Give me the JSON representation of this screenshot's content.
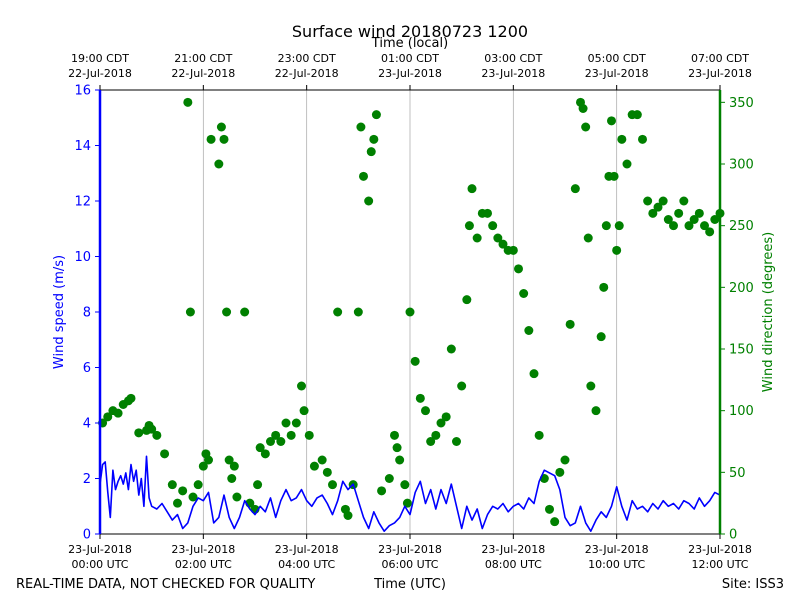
{
  "chart_data": {
    "type": "line",
    "title": "Surface wind 20180723 1200",
    "top_axis_label": "Time (local)",
    "xlabel": "Time (UTC)",
    "ylabel_left": "Wind speed (m/s)",
    "ylabel_right": "Wind direction (degrees)",
    "xlim_utc_hours": [
      0,
      12
    ],
    "ylim_left": [
      0,
      16
    ],
    "ylim_right": [
      0,
      360
    ],
    "grid": "vertical",
    "bottom_ticks": [
      {
        "h": 0,
        "line1": "23-Jul-2018",
        "line2": "00:00 UTC"
      },
      {
        "h": 2,
        "line1": "23-Jul-2018",
        "line2": "02:00 UTC"
      },
      {
        "h": 4,
        "line1": "23-Jul-2018",
        "line2": "04:00 UTC"
      },
      {
        "h": 6,
        "line1": "23-Jul-2018",
        "line2": "06:00 UTC"
      },
      {
        "h": 8,
        "line1": "23-Jul-2018",
        "line2": "08:00 UTC"
      },
      {
        "h": 10,
        "line1": "23-Jul-2018",
        "line2": "10:00 UTC"
      },
      {
        "h": 12,
        "line1": "23-Jul-2018",
        "line2": "12:00 UTC"
      }
    ],
    "top_ticks": [
      {
        "h": 0,
        "line1": "19:00 CDT",
        "line2": "22-Jul-2018"
      },
      {
        "h": 2,
        "line1": "21:00 CDT",
        "line2": "22-Jul-2018"
      },
      {
        "h": 4,
        "line1": "23:00 CDT",
        "line2": "22-Jul-2018"
      },
      {
        "h": 6,
        "line1": "01:00 CDT",
        "line2": "23-Jul-2018"
      },
      {
        "h": 8,
        "line1": "03:00 CDT",
        "line2": "23-Jul-2018"
      },
      {
        "h": 10,
        "line1": "05:00 CDT",
        "line2": "23-Jul-2018"
      },
      {
        "h": 12,
        "line1": "07:00 CDT",
        "line2": "23-Jul-2018"
      }
    ],
    "left_ticks": [
      0,
      2,
      4,
      6,
      8,
      10,
      12,
      14,
      16
    ],
    "right_ticks": [
      0,
      50,
      100,
      150,
      200,
      250,
      300,
      350
    ],
    "series": [
      {
        "name": "Wind speed (m/s)",
        "axis": "left",
        "style": "line",
        "color": "#0000ff",
        "x": [
          0,
          0.05,
          0.1,
          0.15,
          0.2,
          0.25,
          0.3,
          0.35,
          0.4,
          0.45,
          0.5,
          0.55,
          0.6,
          0.65,
          0.7,
          0.75,
          0.8,
          0.85,
          0.9,
          0.95,
          1.0,
          1.1,
          1.2,
          1.3,
          1.4,
          1.5,
          1.6,
          1.7,
          1.8,
          1.9,
          2.0,
          2.1,
          2.2,
          2.3,
          2.4,
          2.5,
          2.6,
          2.7,
          2.8,
          2.9,
          3.0,
          3.1,
          3.2,
          3.3,
          3.4,
          3.5,
          3.6,
          3.7,
          3.8,
          3.9,
          4.0,
          4.1,
          4.2,
          4.3,
          4.4,
          4.5,
          4.6,
          4.7,
          4.8,
          4.9,
          5.0,
          5.1,
          5.2,
          5.3,
          5.4,
          5.5,
          5.6,
          5.7,
          5.8,
          5.9,
          6.0,
          6.1,
          6.2,
          6.3,
          6.4,
          6.5,
          6.6,
          6.7,
          6.8,
          6.9,
          7.0,
          7.1,
          7.2,
          7.3,
          7.4,
          7.5,
          7.6,
          7.7,
          7.8,
          7.9,
          8.0,
          8.1,
          8.2,
          8.3,
          8.4,
          8.5,
          8.6,
          8.7,
          8.8,
          8.9,
          9.0,
          9.1,
          9.2,
          9.3,
          9.4,
          9.5,
          9.6,
          9.7,
          9.8,
          9.9,
          10.0,
          10.1,
          10.2,
          10.3,
          10.4,
          10.5,
          10.6,
          10.7,
          10.8,
          10.9,
          11.0,
          11.1,
          11.2,
          11.3,
          11.4,
          11.5,
          11.6,
          11.7,
          11.8,
          11.9,
          12.0
        ],
        "values": [
          1.8,
          2.5,
          2.6,
          1.5,
          0.6,
          2.3,
          1.6,
          1.9,
          2.1,
          1.8,
          2.2,
          1.6,
          2.5,
          1.9,
          2.3,
          1.4,
          2.0,
          1.0,
          2.8,
          1.3,
          1.0,
          0.9,
          1.1,
          0.8,
          0.5,
          0.7,
          0.2,
          0.4,
          1.0,
          1.3,
          1.2,
          1.5,
          0.4,
          0.6,
          1.4,
          0.6,
          0.2,
          0.6,
          1.2,
          0.9,
          0.7,
          1.0,
          0.8,
          1.3,
          0.6,
          1.2,
          1.6,
          1.2,
          1.3,
          1.6,
          1.2,
          1.0,
          1.3,
          1.4,
          1.1,
          0.7,
          1.2,
          1.9,
          1.6,
          1.8,
          1.2,
          0.6,
          0.2,
          0.8,
          0.4,
          0.1,
          0.3,
          0.4,
          0.6,
          1.0,
          0.7,
          1.5,
          1.9,
          1.1,
          1.6,
          0.9,
          1.6,
          1.1,
          1.8,
          1.0,
          0.2,
          1.0,
          0.5,
          0.9,
          0.2,
          0.7,
          1.0,
          0.9,
          1.1,
          0.8,
          1.0,
          1.1,
          0.9,
          1.3,
          1.1,
          1.9,
          2.3,
          2.2,
          2.1,
          1.6,
          0.6,
          0.3,
          0.4,
          1.0,
          0.4,
          0.1,
          0.5,
          0.8,
          0.6,
          1.0,
          1.7,
          1.0,
          0.5,
          1.2,
          0.9,
          1.0,
          0.8,
          1.1,
          0.9,
          1.2,
          1.0,
          1.1,
          0.9,
          1.2,
          1.1,
          0.9,
          1.3,
          1.0,
          1.2,
          1.5,
          1.4
        ]
      },
      {
        "name": "Wind direction (degrees)",
        "axis": "right",
        "style": "scatter",
        "color": "#008000",
        "x": [
          0.05,
          0.15,
          0.25,
          0.35,
          0.45,
          0.55,
          0.6,
          0.75,
          0.9,
          0.95,
          1.0,
          1.1,
          1.25,
          1.4,
          1.5,
          1.6,
          1.7,
          1.75,
          1.8,
          1.9,
          2.0,
          2.05,
          2.1,
          2.15,
          2.3,
          2.35,
          2.4,
          2.45,
          2.5,
          2.55,
          2.6,
          2.65,
          2.8,
          2.9,
          3.0,
          3.05,
          3.1,
          3.2,
          3.3,
          3.4,
          3.5,
          3.6,
          3.7,
          3.8,
          3.9,
          3.95,
          4.05,
          4.15,
          4.3,
          4.4,
          4.5,
          4.6,
          4.75,
          4.8,
          4.9,
          5.0,
          5.05,
          5.1,
          5.2,
          5.25,
          5.3,
          5.35,
          5.45,
          5.6,
          5.7,
          5.75,
          5.8,
          5.9,
          5.95,
          6.0,
          6.1,
          6.2,
          6.3,
          6.4,
          6.5,
          6.6,
          6.7,
          6.8,
          6.9,
          7.0,
          7.1,
          7.15,
          7.2,
          7.3,
          7.4,
          7.5,
          7.6,
          7.7,
          7.8,
          7.9,
          8.0,
          8.1,
          8.2,
          8.3,
          8.4,
          8.5,
          8.6,
          8.7,
          8.8,
          8.9,
          9.0,
          9.1,
          9.2,
          9.3,
          9.35,
          9.4,
          9.45,
          9.5,
          9.6,
          9.7,
          9.75,
          9.8,
          9.85,
          9.9,
          9.95,
          10.0,
          10.05,
          10.1,
          10.2,
          10.3,
          10.4,
          10.5,
          10.6,
          10.7,
          10.8,
          10.9,
          11.0,
          11.1,
          11.2,
          11.3,
          11.4,
          11.5,
          11.6,
          11.7,
          11.8,
          11.9,
          12.0
        ],
        "values": [
          90,
          95,
          100,
          98,
          105,
          108,
          110,
          82,
          84,
          88,
          85,
          80,
          65,
          40,
          25,
          35,
          350,
          180,
          30,
          40,
          55,
          65,
          60,
          320,
          300,
          330,
          320,
          180,
          60,
          45,
          55,
          30,
          180,
          25,
          20,
          40,
          70,
          65,
          75,
          80,
          75,
          90,
          80,
          90,
          120,
          100,
          80,
          55,
          60,
          50,
          40,
          180,
          20,
          15,
          40,
          180,
          330,
          290,
          270,
          310,
          320,
          340,
          35,
          45,
          80,
          70,
          60,
          40,
          25,
          180,
          140,
          110,
          100,
          75,
          80,
          90,
          95,
          150,
          75,
          120,
          190,
          250,
          280,
          240,
          260,
          260,
          250,
          240,
          235,
          230,
          230,
          215,
          195,
          165,
          130,
          80,
          45,
          20,
          10,
          50,
          60,
          170,
          280,
          350,
          345,
          330,
          240,
          120,
          100,
          160,
          200,
          250,
          290,
          335,
          290,
          230,
          250,
          320,
          300,
          340,
          340,
          320,
          270,
          260,
          265,
          270,
          255,
          250,
          260,
          270,
          250,
          255,
          260,
          250,
          245,
          255,
          260
        ]
      }
    ]
  },
  "footer": {
    "left": "REAL-TIME DATA, NOT CHECKED FOR QUALITY",
    "right": "Site: ISS3"
  },
  "colors": {
    "speed": "#0000ff",
    "direction": "#008000",
    "grid": "#b0b0b0",
    "axis": "#000000"
  }
}
